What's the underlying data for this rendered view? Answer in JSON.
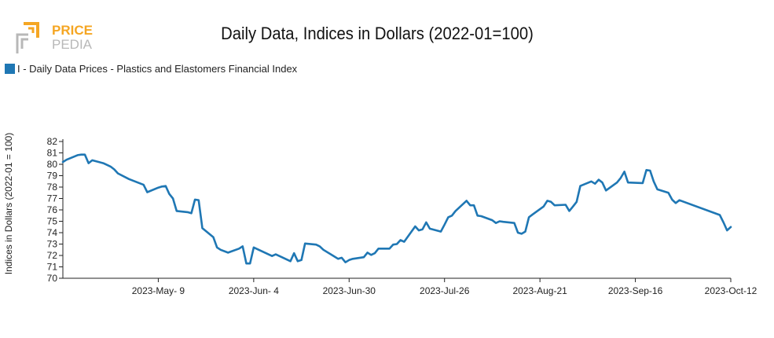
{
  "logo": {
    "line1": "PRICE",
    "line2": "PEDIA",
    "accent_color": "#f5a623",
    "frame_color": "#b8b8b8"
  },
  "chart_data": {
    "type": "line",
    "title": "Daily Data, Indices in Dollars (2022-01=100)",
    "ylabel": "Indices in Dollars (2022-01 = 100)",
    "xlabel": "",
    "ylim": [
      70,
      82
    ],
    "yticks": [
      70,
      71,
      72,
      73,
      74,
      75,
      76,
      77,
      78,
      79,
      80,
      81,
      82
    ],
    "xlim": [
      "2023-04-13",
      "2023-10-12"
    ],
    "xtick_labels": [
      {
        "label": "2023-May- 9",
        "date": "2023-05-09"
      },
      {
        "label": "2023-Jun- 4",
        "date": "2023-06-04"
      },
      {
        "label": "2023-Jun-30",
        "date": "2023-06-30"
      },
      {
        "label": "2023-Jul-26",
        "date": "2023-07-26"
      },
      {
        "label": "2023-Aug-21",
        "date": "2023-08-21"
      },
      {
        "label": "2023-Sep-16",
        "date": "2023-09-16"
      },
      {
        "label": "2023-Oct-12",
        "date": "2023-10-12"
      }
    ],
    "grid": false,
    "legend_position": "top-left",
    "series": [
      {
        "name": "I - Daily Data Prices - Plastics and Elastomers Financial Index",
        "color": "#1f77b4",
        "points": [
          [
            "2023-04-13",
            80.2
          ],
          [
            "2023-04-14",
            80.4
          ],
          [
            "2023-04-17",
            80.8
          ],
          [
            "2023-04-18",
            80.85
          ],
          [
            "2023-04-19",
            80.85
          ],
          [
            "2023-04-20",
            80.1
          ],
          [
            "2023-04-21",
            80.35
          ],
          [
            "2023-04-24",
            80.1
          ],
          [
            "2023-04-25",
            79.95
          ],
          [
            "2023-04-26",
            79.8
          ],
          [
            "2023-04-27",
            79.55
          ],
          [
            "2023-04-28",
            79.2
          ],
          [
            "2023-05-01",
            78.7
          ],
          [
            "2023-05-05",
            78.2
          ],
          [
            "2023-05-06",
            77.55
          ],
          [
            "2023-05-09",
            77.95
          ],
          [
            "2023-05-10",
            78.05
          ],
          [
            "2023-05-11",
            78.1
          ],
          [
            "2023-05-12",
            77.4
          ],
          [
            "2023-05-13",
            77.0
          ],
          [
            "2023-05-14",
            75.9
          ],
          [
            "2023-05-17",
            75.8
          ],
          [
            "2023-05-18",
            75.7
          ],
          [
            "2023-05-19",
            76.9
          ],
          [
            "2023-05-20",
            76.85
          ],
          [
            "2023-05-21",
            74.4
          ],
          [
            "2023-05-24",
            73.6
          ],
          [
            "2023-05-25",
            72.7
          ],
          [
            "2023-05-26",
            72.5
          ],
          [
            "2023-05-28",
            72.25
          ],
          [
            "2023-05-31",
            72.6
          ],
          [
            "2023-06-01",
            72.8
          ],
          [
            "2023-06-02",
            71.3
          ],
          [
            "2023-06-03",
            71.3
          ],
          [
            "2023-06-04",
            72.7
          ],
          [
            "2023-06-09",
            71.95
          ],
          [
            "2023-06-10",
            72.1
          ],
          [
            "2023-06-11",
            71.95
          ],
          [
            "2023-06-14",
            71.5
          ],
          [
            "2023-06-15",
            72.2
          ],
          [
            "2023-06-16",
            71.5
          ],
          [
            "2023-06-17",
            71.6
          ],
          [
            "2023-06-18",
            73.05
          ],
          [
            "2023-06-21",
            72.95
          ],
          [
            "2023-06-22",
            72.8
          ],
          [
            "2023-06-23",
            72.5
          ],
          [
            "2023-06-26",
            71.9
          ],
          [
            "2023-06-27",
            71.7
          ],
          [
            "2023-06-28",
            71.8
          ],
          [
            "2023-06-29",
            71.4
          ],
          [
            "2023-06-30",
            71.6
          ],
          [
            "2023-07-01",
            71.7
          ],
          [
            "2023-07-04",
            71.85
          ],
          [
            "2023-07-05",
            72.25
          ],
          [
            "2023-07-06",
            72.05
          ],
          [
            "2023-07-07",
            72.2
          ],
          [
            "2023-07-08",
            72.6
          ],
          [
            "2023-07-11",
            72.6
          ],
          [
            "2023-07-12",
            72.95
          ],
          [
            "2023-07-13",
            73.0
          ],
          [
            "2023-07-14",
            73.35
          ],
          [
            "2023-07-15",
            73.2
          ],
          [
            "2023-07-18",
            74.55
          ],
          [
            "2023-07-19",
            74.2
          ],
          [
            "2023-07-20",
            74.3
          ],
          [
            "2023-07-21",
            74.9
          ],
          [
            "2023-07-22",
            74.35
          ],
          [
            "2023-07-25",
            74.1
          ],
          [
            "2023-07-26",
            74.7
          ],
          [
            "2023-07-27",
            75.35
          ],
          [
            "2023-07-28",
            75.5
          ],
          [
            "2023-07-29",
            75.9
          ],
          [
            "2023-08-01",
            76.8
          ],
          [
            "2023-08-02",
            76.4
          ],
          [
            "2023-08-03",
            76.4
          ],
          [
            "2023-08-04",
            75.5
          ],
          [
            "2023-08-05",
            75.45
          ],
          [
            "2023-08-08",
            75.1
          ],
          [
            "2023-08-09",
            74.85
          ],
          [
            "2023-08-10",
            75.0
          ],
          [
            "2023-08-11",
            74.95
          ],
          [
            "2023-08-14",
            74.85
          ],
          [
            "2023-08-15",
            74.0
          ],
          [
            "2023-08-16",
            73.9
          ],
          [
            "2023-08-17",
            74.1
          ],
          [
            "2023-08-18",
            75.35
          ],
          [
            "2023-08-19",
            75.6
          ],
          [
            "2023-08-22",
            76.3
          ],
          [
            "2023-08-23",
            76.8
          ],
          [
            "2023-08-24",
            76.7
          ],
          [
            "2023-08-25",
            76.4
          ],
          [
            "2023-08-28",
            76.45
          ],
          [
            "2023-08-29",
            75.9
          ],
          [
            "2023-08-30",
            76.3
          ],
          [
            "2023-08-31",
            76.7
          ],
          [
            "2023-09-01",
            78.1
          ],
          [
            "2023-09-04",
            78.5
          ],
          [
            "2023-09-05",
            78.3
          ],
          [
            "2023-09-06",
            78.65
          ],
          [
            "2023-09-07",
            78.4
          ],
          [
            "2023-09-08",
            77.7
          ],
          [
            "2023-09-11",
            78.4
          ],
          [
            "2023-09-12",
            78.8
          ],
          [
            "2023-09-13",
            79.35
          ],
          [
            "2023-09-14",
            78.4
          ],
          [
            "2023-09-18",
            78.35
          ],
          [
            "2023-09-19",
            79.5
          ],
          [
            "2023-09-20",
            79.45
          ],
          [
            "2023-09-21",
            78.5
          ],
          [
            "2023-09-22",
            77.8
          ],
          [
            "2023-09-25",
            77.5
          ],
          [
            "2023-09-26",
            76.9
          ],
          [
            "2023-09-27",
            76.6
          ],
          [
            "2023-09-28",
            76.85
          ],
          [
            "2023-10-09",
            75.55
          ],
          [
            "2023-10-10",
            74.9
          ],
          [
            "2023-10-11",
            74.2
          ],
          [
            "2023-10-12",
            74.5
          ]
        ]
      }
    ]
  }
}
